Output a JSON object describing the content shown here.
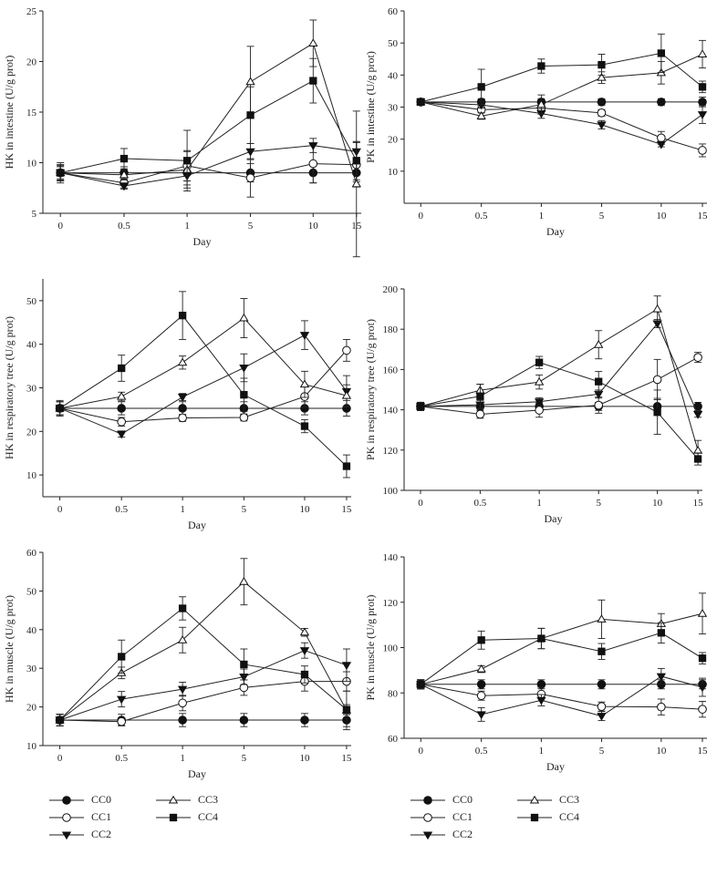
{
  "chart_data": [
    {
      "type": "line",
      "xlabel": "Day",
      "ylabel": "HK in intestine (U/g prot)",
      "categories": [
        "0",
        "0.5",
        "1",
        "5",
        "10",
        "15"
      ],
      "ylim": [
        5,
        25
      ],
      "yticks": [
        5,
        10,
        15,
        20,
        25
      ],
      "series": [
        {
          "name": "CC0",
          "values": [
            9.0,
            9.0,
            9.0,
            9.0,
            9.0,
            9.0
          ],
          "err": [
            1.0,
            0.6,
            1.2,
            0.9,
            1.0,
            0.9
          ]
        },
        {
          "name": "CC1",
          "values": [
            9.0,
            8.0,
            9.7,
            8.5,
            9.9,
            9.8
          ],
          "err": [
            0.8,
            0.5,
            1.5,
            1.9,
            1.9,
            2.2
          ]
        },
        {
          "name": "CC2",
          "values": [
            9.0,
            7.7,
            8.7,
            11.1,
            11.7,
            11.1
          ],
          "err": [
            0.8,
            0.3,
            0.5,
            0.8,
            0.7,
            0.9
          ]
        },
        {
          "name": "CC3",
          "values": [
            9.0,
            8.8,
            9.3,
            18.0,
            21.8,
            7.9
          ],
          "err": [
            0.7,
            0.5,
            1.8,
            3.5,
            2.3,
            7.2
          ]
        },
        {
          "name": "CC4",
          "values": [
            9.0,
            10.4,
            10.2,
            14.7,
            18.1,
            10.2
          ],
          "err": [
            0.6,
            1.0,
            3.0,
            2.8,
            2.2,
            1.9
          ]
        }
      ]
    },
    {
      "type": "line",
      "xlabel": "Day",
      "ylabel": "PK in intestine (U/g prot)",
      "categories": [
        "0",
        "0.5",
        "1",
        "5",
        "10",
        "15"
      ],
      "ylim": [
        0,
        60
      ],
      "yticks": [
        10,
        20,
        30,
        40,
        50,
        60
      ],
      "series": [
        {
          "name": "CC0",
          "values": [
            31.6,
            31.6,
            31.6,
            31.6,
            31.6,
            31.6
          ],
          "err": [
            1.0,
            1.0,
            1.0,
            1.0,
            1.0,
            1.5
          ]
        },
        {
          "name": "CC1",
          "values": [
            31.6,
            29.2,
            29.7,
            28.2,
            20.4,
            16.5
          ],
          "err": [
            1.0,
            1.0,
            1.0,
            1.0,
            2.0,
            2.0
          ]
        },
        {
          "name": "CC2",
          "values": [
            31.6,
            30.7,
            28.0,
            24.5,
            18.4,
            27.7
          ],
          "err": [
            1.0,
            1.0,
            1.5,
            1.3,
            0.8,
            2.8
          ]
        },
        {
          "name": "CC3",
          "values": [
            31.6,
            27.2,
            30.8,
            39.2,
            40.7,
            46.5
          ],
          "err": [
            1.0,
            1.0,
            3.0,
            1.8,
            3.5,
            4.3
          ]
        },
        {
          "name": "CC4",
          "values": [
            31.6,
            36.3,
            42.8,
            43.2,
            46.8,
            36.3
          ],
          "err": [
            1.0,
            5.5,
            2.2,
            3.3,
            6.0,
            1.8
          ]
        }
      ]
    },
    {
      "type": "line",
      "xlabel": "Day",
      "ylabel": "HK in respiratory tree (U/g prot)",
      "categories": [
        "0",
        "0.5",
        "1",
        "5",
        "10",
        "15"
      ],
      "ylim": [
        5,
        55
      ],
      "yticks": [
        10,
        20,
        30,
        40,
        50
      ],
      "series": [
        {
          "name": "CC0",
          "values": [
            25.3,
            25.3,
            25.3,
            25.3,
            25.3,
            25.3
          ],
          "err": [
            1.8,
            1.5,
            1.5,
            1.5,
            1.5,
            1.8
          ]
        },
        {
          "name": "CC1",
          "values": [
            25.3,
            22.2,
            23.1,
            23.2,
            28.0,
            38.6
          ],
          "err": [
            1.5,
            1.0,
            0.8,
            0.8,
            2.5,
            2.5
          ]
        },
        {
          "name": "CC2",
          "values": [
            25.3,
            19.4,
            27.9,
            34.6,
            42.1,
            29.2
          ],
          "err": [
            1.5,
            0.7,
            0.8,
            3.2,
            3.3,
            3.6
          ]
        },
        {
          "name": "CC3",
          "values": [
            25.3,
            28.0,
            35.8,
            46.0,
            30.8,
            28.2
          ],
          "err": [
            1.5,
            1.0,
            1.5,
            4.5,
            3.0,
            2.5
          ]
        },
        {
          "name": "CC4",
          "values": [
            25.3,
            34.5,
            46.6,
            28.4,
            21.2,
            12.0
          ],
          "err": [
            1.5,
            3.0,
            5.5,
            3.8,
            1.5,
            2.6
          ]
        }
      ]
    },
    {
      "type": "line",
      "xlabel": "Day",
      "ylabel": "PK in respiratory tree (U/g prot)",
      "categories": [
        "0",
        "0.5",
        "1",
        "5",
        "10",
        "15"
      ],
      "ylim": [
        100,
        200
      ],
      "yticks": [
        100,
        120,
        140,
        160,
        180,
        200
      ],
      "series": [
        {
          "name": "CC0",
          "values": [
            141.7,
            141.7,
            141.7,
            141.7,
            141.7,
            141.7
          ],
          "err": [
            2.0,
            2.0,
            2.0,
            2.0,
            4.0,
            2.0
          ]
        },
        {
          "name": "CC1",
          "values": [
            141.7,
            137.8,
            139.8,
            142.3,
            155.0,
            166.0
          ],
          "err": [
            2.0,
            2.0,
            3.5,
            4.0,
            10.0,
            2.5
          ]
        },
        {
          "name": "CC2",
          "values": [
            141.7,
            142.5,
            144.0,
            147.8,
            182.8,
            137.8
          ],
          "err": [
            2.0,
            2.0,
            2.0,
            2.0,
            2.0,
            1.5
          ]
        },
        {
          "name": "CC3",
          "values": [
            141.7,
            149.7,
            153.8,
            172.3,
            190.0,
            119.8
          ],
          "err": [
            2.0,
            3.0,
            3.5,
            7.0,
            6.5,
            5.0
          ]
        },
        {
          "name": "CC4",
          "values": [
            141.7,
            146.7,
            163.5,
            154.0,
            138.8,
            115.6
          ],
          "err": [
            2.0,
            6.0,
            3.0,
            5.0,
            11.0,
            3.0
          ]
        }
      ]
    },
    {
      "type": "line",
      "xlabel": "Day",
      "ylabel": "HK in muscle (U/g prot)",
      "categories": [
        "0",
        "0.5",
        "1",
        "5",
        "10",
        "15"
      ],
      "ylim": [
        10,
        60
      ],
      "yticks": [
        10,
        20,
        30,
        40,
        50,
        60
      ],
      "series": [
        {
          "name": "CC0",
          "values": [
            16.6,
            16.6,
            16.6,
            16.6,
            16.6,
            16.6
          ],
          "err": [
            1.5,
            1.5,
            1.7,
            1.7,
            1.7,
            1.7
          ]
        },
        {
          "name": "CC1",
          "values": [
            16.6,
            16.2,
            21.0,
            25.0,
            26.6,
            26.6
          ],
          "err": [
            1.5,
            1.0,
            2.0,
            2.0,
            2.5,
            2.5
          ]
        },
        {
          "name": "CC2",
          "values": [
            16.6,
            22.0,
            24.6,
            27.8,
            34.6,
            30.8
          ],
          "err": [
            1.5,
            2.0,
            1.8,
            2.0,
            2.0,
            4.2
          ]
        },
        {
          "name": "CC3",
          "values": [
            16.6,
            28.8,
            37.3,
            52.4,
            39.3,
            19.1
          ],
          "err": [
            1.5,
            1.5,
            3.3,
            6.0,
            1.0,
            5.0
          ]
        },
        {
          "name": "CC4",
          "values": [
            16.6,
            33.0,
            45.5,
            31.0,
            28.4,
            19.3
          ],
          "err": [
            1.5,
            4.3,
            3.0,
            4.0,
            2.2,
            1.3
          ]
        }
      ]
    },
    {
      "type": "line",
      "xlabel": "Day",
      "ylabel": "PK in muscle (U/g prot)",
      "categories": [
        "0",
        "0.5",
        "1",
        "5",
        "10",
        "15"
      ],
      "ylim": [
        60,
        140
      ],
      "yticks": [
        60,
        80,
        100,
        120,
        140
      ],
      "series": [
        {
          "name": "CC0",
          "values": [
            83.8,
            83.8,
            83.8,
            83.8,
            83.8,
            83.8
          ],
          "err": [
            2.0,
            2.0,
            2.0,
            2.0,
            2.0,
            2.0
          ]
        },
        {
          "name": "CC1",
          "values": [
            83.8,
            78.8,
            79.5,
            74.0,
            73.8,
            72.8
          ],
          "err": [
            2.0,
            2.0,
            3.0,
            2.0,
            3.5,
            3.5
          ]
        },
        {
          "name": "CC2",
          "values": [
            83.8,
            70.5,
            76.8,
            69.8,
            87.3,
            82.5
          ],
          "err": [
            2.0,
            3.0,
            2.5,
            2.0,
            3.5,
            4.0
          ]
        },
        {
          "name": "CC3",
          "values": [
            83.8,
            90.5,
            104.0,
            112.5,
            110.5,
            115.0
          ],
          "err": [
            2.0,
            1.5,
            4.5,
            8.5,
            4.5,
            9.0
          ]
        },
        {
          "name": "CC4",
          "values": [
            83.8,
            103.3,
            104.0,
            98.3,
            106.5,
            95.3
          ],
          "err": [
            2.0,
            4.0,
            4.5,
            3.5,
            4.5,
            2.5
          ]
        }
      ]
    }
  ],
  "legend": [
    {
      "label": "CC0",
      "marker": "circle-filled"
    },
    {
      "label": "CC1",
      "marker": "circle-open"
    },
    {
      "label": "CC2",
      "marker": "triangle-down-filled"
    },
    {
      "label": "CC3",
      "marker": "triangle-up-open"
    },
    {
      "label": "CC4",
      "marker": "square-filled"
    }
  ]
}
